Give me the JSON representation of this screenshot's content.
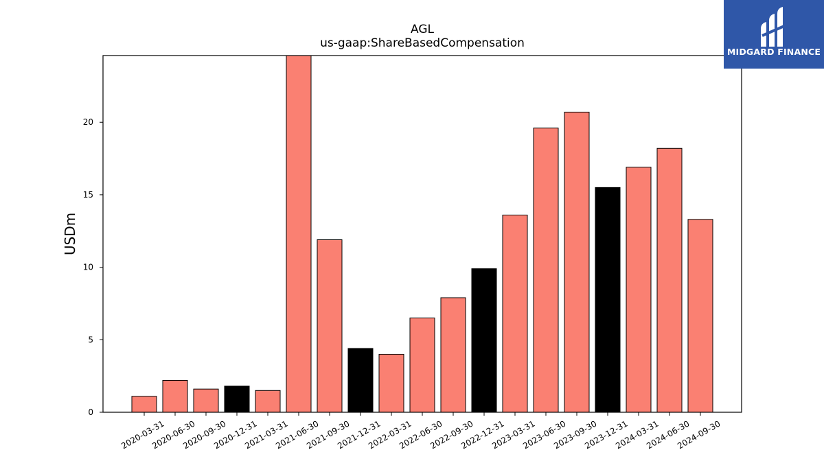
{
  "brand": {
    "name": "MIDGARD FINANCE",
    "color": "#2f57a8"
  },
  "chart_data": {
    "type": "bar",
    "title": "AGL",
    "subtitle": "us-gaap:ShareBasedCompensation",
    "xlabel": "",
    "ylabel": "USDm",
    "ylim": [
      0,
      24.6
    ],
    "yticks": [
      0,
      5,
      10,
      15,
      20
    ],
    "grid": false,
    "categories": [
      "2020-03-31",
      "2020-06-30",
      "2020-09-30",
      "2020-12-31",
      "2021-03-31",
      "2021-06-30",
      "2021-09-30",
      "2021-12-31",
      "2022-03-31",
      "2022-06-30",
      "2022-09-30",
      "2022-12-31",
      "2023-03-31",
      "2023-06-30",
      "2023-09-30",
      "2023-12-31",
      "2024-03-31",
      "2024-06-30",
      "2024-09-30"
    ],
    "values": [
      1.1,
      2.2,
      1.6,
      1.8,
      1.5,
      24.6,
      11.9,
      4.4,
      4.0,
      6.5,
      7.9,
      9.9,
      13.6,
      19.6,
      20.7,
      15.5,
      16.9,
      18.2,
      13.3
    ],
    "bar_colors": [
      "#fa8072",
      "#fa8072",
      "#fa8072",
      "#000000",
      "#fa8072",
      "#fa8072",
      "#fa8072",
      "#000000",
      "#fa8072",
      "#fa8072",
      "#fa8072",
      "#000000",
      "#fa8072",
      "#fa8072",
      "#fa8072",
      "#000000",
      "#fa8072",
      "#fa8072",
      "#fa8072"
    ],
    "colors": {
      "quarter": "#fa8072",
      "year_end": "#000000"
    }
  }
}
